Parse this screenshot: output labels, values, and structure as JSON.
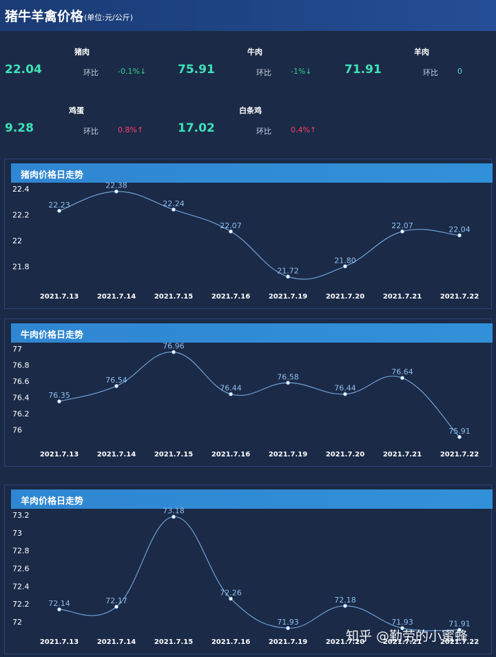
{
  "header": {
    "title": "猪牛羊禽价格",
    "unit": "(单位:元/公斤)"
  },
  "stats": [
    {
      "name": "猪肉",
      "value": "22.04",
      "ratio_label": "环比",
      "ratio": "-0.1%↓",
      "trend": "down"
    },
    {
      "name": "牛肉",
      "value": "75.91",
      "ratio_label": "环比",
      "ratio": "-1%↓",
      "trend": "down"
    },
    {
      "name": "羊肉",
      "value": "71.91",
      "ratio_label": "环比",
      "ratio": "0",
      "trend": "flat"
    },
    {
      "name": "鸡蛋",
      "value": "9.28",
      "ratio_label": "环比",
      "ratio": "0.8%↑",
      "trend": "up"
    },
    {
      "name": "白条鸡",
      "value": "17.02",
      "ratio_label": "环比",
      "ratio": "0.4%↑",
      "trend": "up"
    }
  ],
  "colors": {
    "line": "#6fa2d8",
    "value_label": "#8ec0ee",
    "accent": "#3de3b8",
    "down": "#30d28a",
    "up": "#ff3d68"
  },
  "chart_data": [
    {
      "type": "line",
      "title": "猪肉价格日走势",
      "categories": [
        "2021.7.13",
        "2021.7.14",
        "2021.7.15",
        "2021.7.16",
        "2021.7.19",
        "2021.7.20",
        "2021.7.21",
        "2021.7.22"
      ],
      "values": [
        22.23,
        22.38,
        22.24,
        22.07,
        21.72,
        21.8,
        22.07,
        22.04
      ],
      "value_labels": [
        "22.23",
        "22.38",
        "22.24",
        "22.07",
        "21.72",
        "21.80",
        "22.07",
        "22.04"
      ],
      "yticks": [
        "21.8",
        "22",
        "22.2",
        "22.4"
      ],
      "ylim": [
        21.7,
        22.4
      ],
      "grid": false,
      "smooth": true
    },
    {
      "type": "line",
      "title": "牛肉价格日走势",
      "categories": [
        "2021.7.13",
        "2021.7.14",
        "2021.7.15",
        "2021.7.16",
        "2021.7.19",
        "2021.7.20",
        "2021.7.21",
        "2021.7.22"
      ],
      "values": [
        76.35,
        76.54,
        76.96,
        76.44,
        76.58,
        76.44,
        76.64,
        75.91
      ],
      "value_labels": [
        "76.35",
        "76.54",
        "76.96",
        "76.44",
        "76.58",
        "76.44",
        "76.64",
        "75.91"
      ],
      "yticks": [
        "76",
        "76.2",
        "76.4",
        "76.6",
        "76.8",
        "77"
      ],
      "ylim": [
        75.9,
        77
      ],
      "grid": false,
      "smooth": true
    },
    {
      "type": "line",
      "title": "羊肉价格日走势",
      "categories": [
        "2021.7.13",
        "2021.7.14",
        "2021.7.15",
        "2021.7.16",
        "2021.7.19",
        "2021.7.20",
        "2021.7.21",
        "2021.7.22"
      ],
      "values": [
        72.14,
        72.17,
        73.18,
        72.26,
        71.93,
        72.18,
        71.93,
        71.91
      ],
      "value_labels": [
        "72.14",
        "72.17",
        "73.18",
        "72.26",
        "71.93",
        "72.18",
        "71.93",
        "71.91"
      ],
      "yticks": [
        "72",
        "72.2",
        "72.4",
        "72.6",
        "72.8",
        "73",
        "73.2"
      ],
      "ylim": [
        71.9,
        73.2
      ],
      "grid": false,
      "smooth": true
    }
  ],
  "watermark": "知乎 @勤劳的小蜜蜂"
}
